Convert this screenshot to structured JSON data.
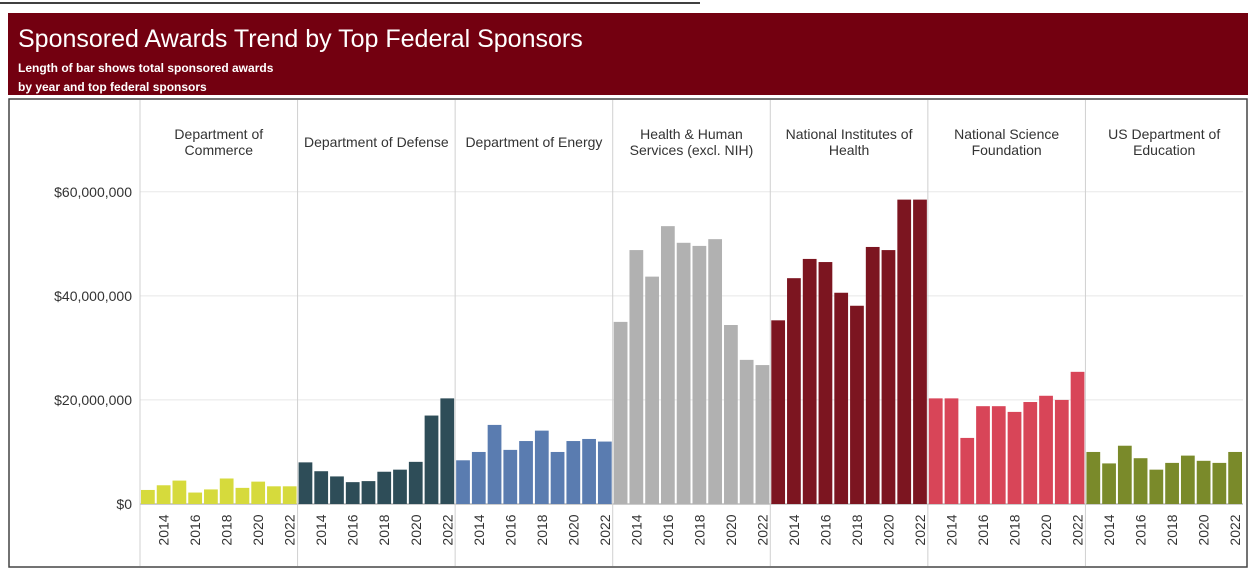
{
  "chart_data": {
    "type": "bar",
    "title": "Sponsored Awards Trend by Top Federal Sponsors",
    "subtitle": [
      "Length of bar shows total sponsored awards",
      "by year and top federal sponsors"
    ],
    "categories": [
      null,
      "2014",
      null,
      "2016",
      null,
      "2018",
      null,
      "2020",
      null,
      "2022"
    ],
    "ylim": [
      0,
      61500000
    ],
    "yticks": [
      {
        "value": 0,
        "label": "$0"
      },
      {
        "value": 20000000,
        "label": "$20,000,000"
      },
      {
        "value": 40000000,
        "label": "$40,000,000"
      },
      {
        "value": 60000000,
        "label": "$60,000,000"
      }
    ],
    "grid": true,
    "series": [
      {
        "name": "Department of Commerce",
        "color": "#d6da3c",
        "values": [
          2700000,
          3600000,
          4500000,
          2200000,
          2800000,
          4900000,
          3100000,
          4300000,
          3400000,
          3400000
        ]
      },
      {
        "name": "Department of Defense",
        "color": "#2e4d58",
        "values": [
          8000000,
          6300000,
          5300000,
          4200000,
          4400000,
          6200000,
          6600000,
          8100000,
          17000000,
          20300000
        ]
      },
      {
        "name": "Department of Energy",
        "color": "#5a7cb0",
        "values": [
          8400000,
          10000000,
          15200000,
          10400000,
          12100000,
          14100000,
          10000000,
          12100000,
          12500000,
          12000000
        ]
      },
      {
        "name": "Health & Human Services (excl. NIH)",
        "color": "#b1b1b1",
        "values": [
          35000000,
          48800000,
          43700000,
          53400000,
          50200000,
          49600000,
          50900000,
          34400000,
          27700000,
          26700000
        ]
      },
      {
        "name": "National Institutes of Health",
        "color": "#7c1520",
        "values": [
          35300000,
          43400000,
          47100000,
          46500000,
          40600000,
          38100000,
          49400000,
          48800000,
          58500000,
          58500000
        ]
      },
      {
        "name": "National Science Foundation",
        "color": "#d84558",
        "values": [
          20300000,
          20300000,
          12700000,
          18800000,
          18800000,
          17700000,
          19600000,
          20800000,
          20000000,
          25400000
        ]
      },
      {
        "name": "US Department of Education",
        "color": "#7a8a2a",
        "values": [
          10000000,
          7800000,
          11200000,
          8800000,
          6600000,
          7900000,
          9300000,
          8300000,
          7900000,
          10000000
        ]
      }
    ]
  }
}
